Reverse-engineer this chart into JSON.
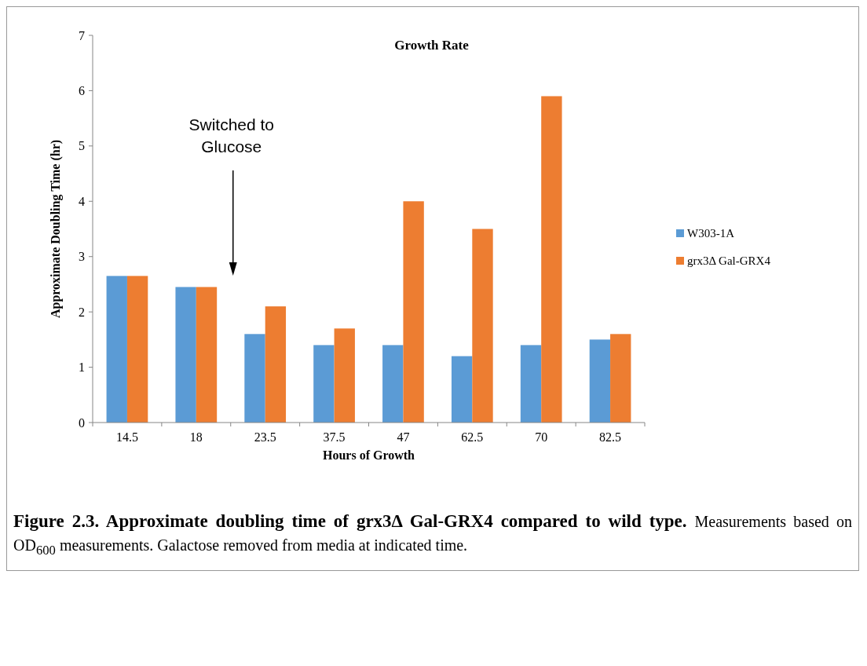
{
  "chart_data": {
    "type": "bar",
    "title": "Growth Rate",
    "xlabel": "Hours of Growth",
    "ylabel": "Approximate Doubling Time (hr)",
    "categories": [
      "14.5",
      "18",
      "23.5",
      "37.5",
      "47",
      "62.5",
      "70",
      "82.5"
    ],
    "series": [
      {
        "name": "W303-1A",
        "color": "#5b9bd5",
        "values": [
          2.65,
          2.45,
          1.6,
          1.4,
          1.4,
          1.2,
          1.4,
          1.5
        ]
      },
      {
        "name": "grx3Δ Gal-GRX4",
        "color": "#ed7d31",
        "values": [
          2.65,
          2.45,
          2.1,
          1.7,
          4.0,
          3.5,
          5.9,
          1.6
        ]
      }
    ],
    "ylim": [
      0,
      7
    ],
    "yticks": [
      0,
      1,
      2,
      3,
      4,
      5,
      6,
      7
    ],
    "grid": false,
    "legend": "right",
    "annotations": [
      "Switched to Glucose",
      "Figure 2.3. Approximate doubling time of grx3Δ Gal-GRX4 compared to wild type.",
      "Measurements based on OD$_{600}$ measurements. Galactose removed from media at indicated time."
    ]
  }
}
